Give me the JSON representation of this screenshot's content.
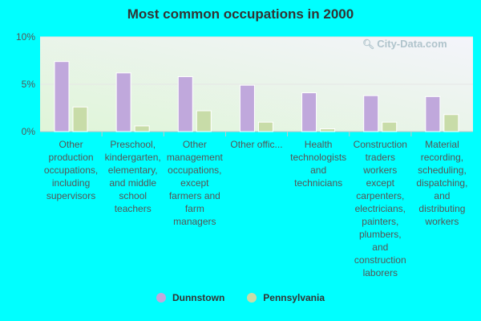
{
  "colors": {
    "background": "#00ffff",
    "dunnstown": "#c0a8dc",
    "pennsylvania": "#c8dca8",
    "plot_gradient_top": "#f4f4fb",
    "plot_gradient_bottom": "#dff5d8"
  },
  "watermark": {
    "text": "City-Data.com",
    "icon": "magnifier-icon"
  },
  "chart_data": {
    "type": "bar",
    "title": "Most common occupations in 2000",
    "xlabel": "",
    "ylabel": "",
    "ylim": [
      0,
      10
    ],
    "yticks": [
      0,
      5,
      10
    ],
    "ytick_labels": [
      "0%",
      "5%",
      "10%"
    ],
    "grid": true,
    "legend_position": "bottom",
    "categories": [
      "Other production occupations, including supervisors",
      "Preschool, kindergarten, elementary, and middle school teachers",
      "Other management occupations, except farmers and farm managers",
      "Other offic...",
      "Health technologists and technicians",
      "Construction traders workers except carpenters, electricians, painters, plumbers, and construction laborers",
      "Material recording, scheduling, dispatching, and distributing workers"
    ],
    "category_display_lines": [
      [
        "Other",
        "production",
        "occupations,",
        "including",
        "supervisors"
      ],
      [
        "Preschool,",
        "kindergarten,",
        "elementary,",
        "and middle",
        "school",
        "teachers"
      ],
      [
        "Other",
        "management",
        "occupations,",
        "except",
        "farmers and",
        "farm",
        "managers"
      ],
      [
        "Other offic..."
      ],
      [
        "Health",
        "technologists",
        "and",
        "technicians"
      ],
      [
        "Construction",
        "traders",
        "workers",
        "except",
        "carpenters,",
        "electricians,",
        "painters,",
        "plumbers,",
        "and",
        "construction",
        "laborers"
      ],
      [
        "Material",
        "recording,",
        "scheduling,",
        "dispatching,",
        "and",
        "distributing",
        "workers"
      ]
    ],
    "series": [
      {
        "name": "Dunnstown",
        "values": [
          7.4,
          6.2,
          5.8,
          4.9,
          4.1,
          3.8,
          3.7
        ]
      },
      {
        "name": "Pennsylvania",
        "values": [
          2.6,
          0.6,
          2.2,
          1.0,
          0.3,
          1.0,
          1.8
        ]
      }
    ]
  }
}
